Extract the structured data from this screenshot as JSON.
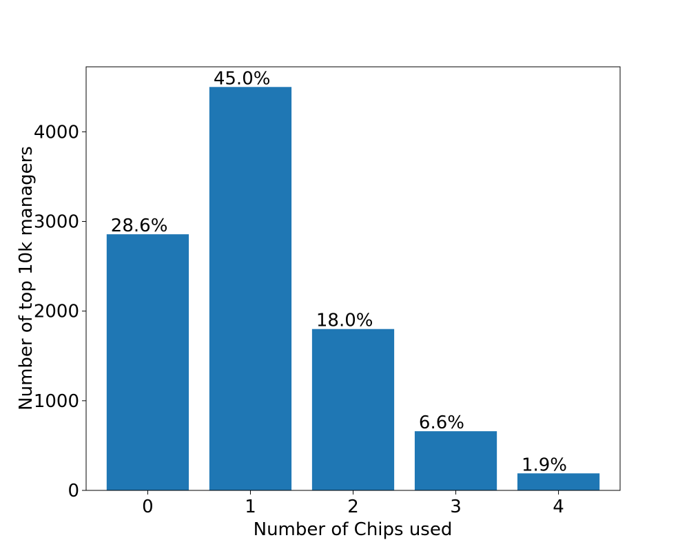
{
  "chart_data": {
    "type": "bar",
    "title": "",
    "xlabel": "Number of Chips used",
    "ylabel": "Number of top 10k managers",
    "categories": [
      "0",
      "1",
      "2",
      "3",
      "4"
    ],
    "values": [
      2857,
      4500,
      1800,
      660,
      190
    ],
    "data_labels": [
      "28.6%",
      "45.0%",
      "18.0%",
      "6.6%",
      "1.9%"
    ],
    "yticks": [
      0,
      1000,
      2000,
      3000,
      4000
    ],
    "ytick_labels": [
      "0",
      "1000",
      "2000",
      "3000",
      "4000"
    ],
    "ylim": [
      0,
      4725
    ],
    "grid": false,
    "legend": "none",
    "bar_color": "#1f77b4"
  }
}
